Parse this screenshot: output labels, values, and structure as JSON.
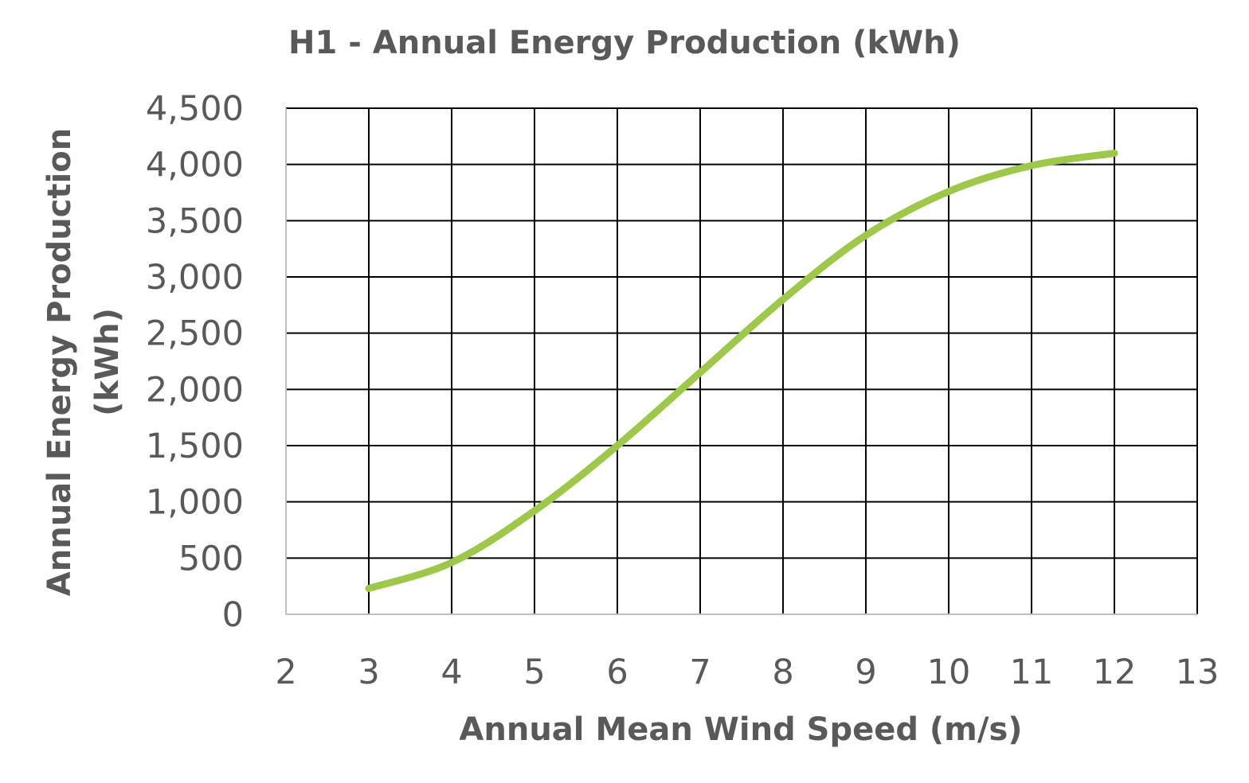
{
  "chart_data": {
    "type": "line",
    "title": "H1 - Annual Energy Production (kWh)",
    "xlabel": "Annual Mean Wind Speed (m/s)",
    "ylabel_lines": [
      "Annual Energy Production",
      "(kWh)"
    ],
    "xlim": [
      2,
      13
    ],
    "ylim": [
      0,
      4500
    ],
    "x_ticks": [
      "2",
      "3",
      "4",
      "5",
      "6",
      "7",
      "8",
      "9",
      "10",
      "11",
      "12",
      "13"
    ],
    "y_ticks": [
      "0",
      "500",
      "1,000",
      "1,500",
      "2,000",
      "2,500",
      "3,000",
      "3,500",
      "4,000",
      "4,500"
    ],
    "grid": true,
    "legend": "none",
    "series": [
      {
        "color": "#9dc84a",
        "x": [
          3,
          4,
          5,
          6,
          7,
          8,
          9,
          10,
          11,
          12
        ],
        "y": [
          230,
          460,
          920,
          1500,
          2150,
          2800,
          3370,
          3760,
          3990,
          4100
        ]
      }
    ]
  }
}
